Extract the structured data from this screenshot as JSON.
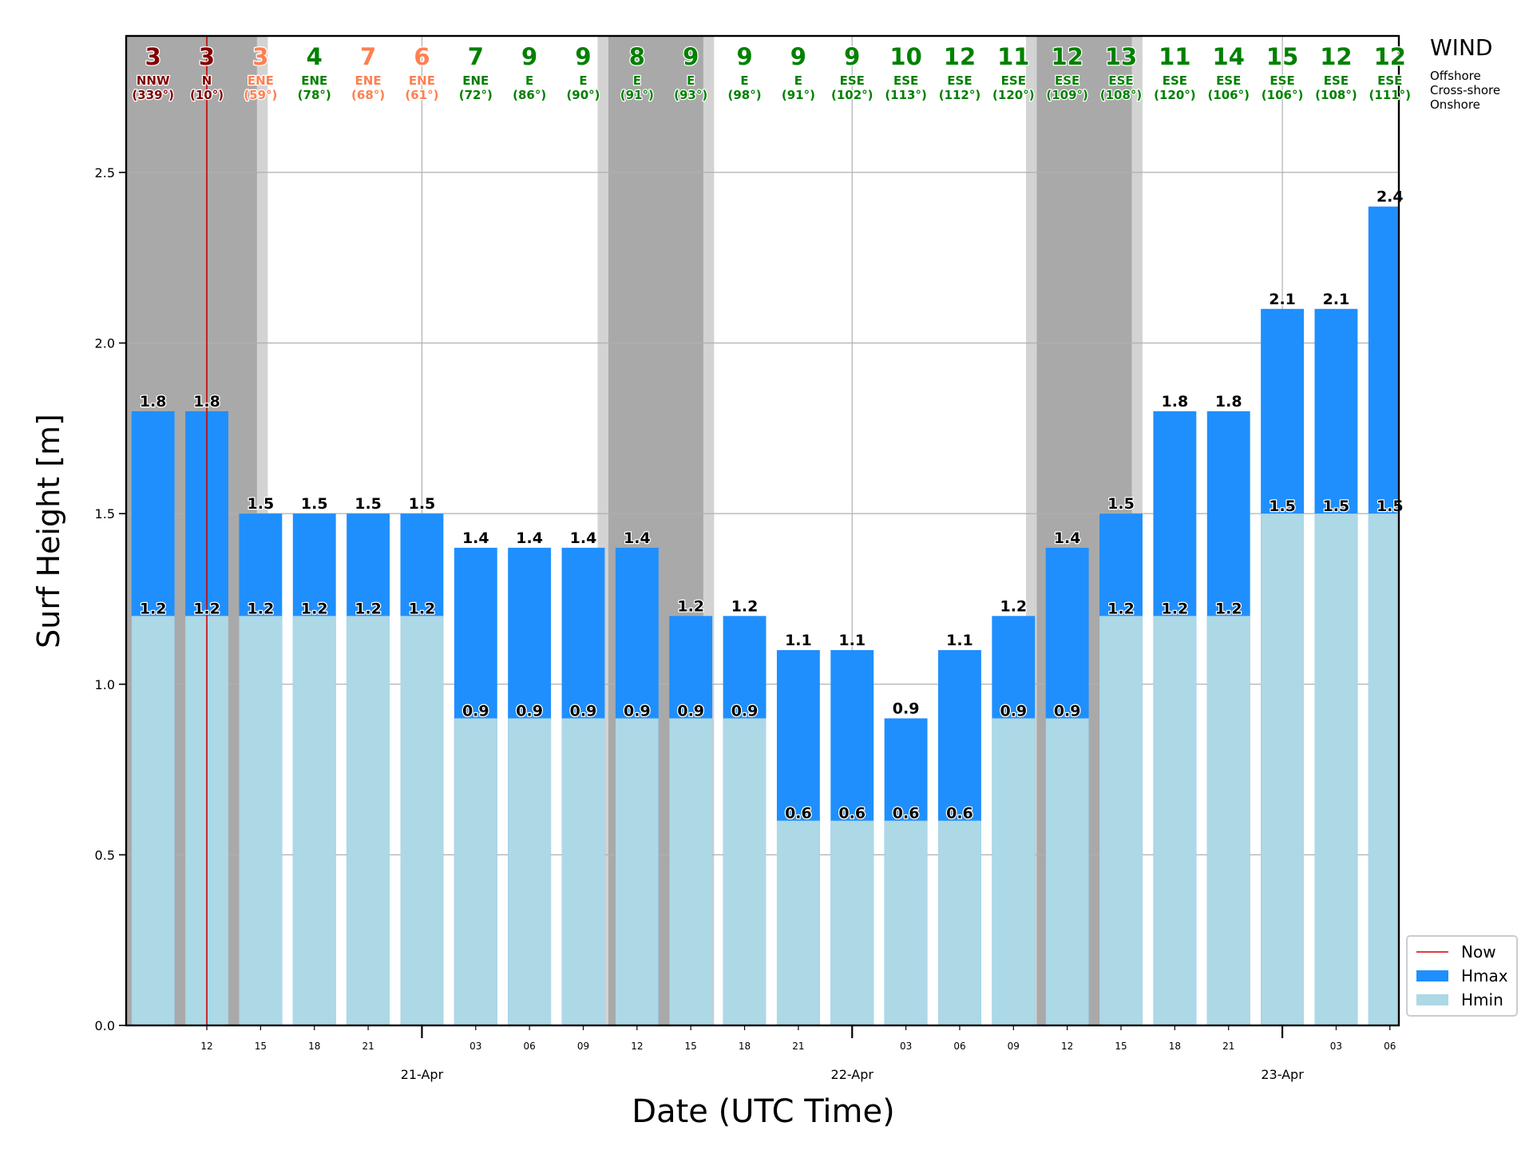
{
  "chart_data": {
    "type": "bar",
    "ylabel": "Surf Height [m]",
    "xlabel": "Date (UTC Time)",
    "ylim": [
      0,
      2.9
    ],
    "yticks": [
      "0.0",
      "0.5",
      "1.0",
      "1.5",
      "2.0",
      "2.5"
    ],
    "yticks_values": [
      0,
      0.5,
      1.0,
      1.5,
      2.0,
      2.5
    ],
    "grid": true,
    "start_time": "2024-04-20T09:00",
    "step_hours": 3,
    "x_range_hours": [
      9.0,
      55.0
    ],
    "times_hours": [
      9,
      12,
      15,
      18,
      21,
      24,
      27,
      30,
      33,
      36,
      39,
      42,
      45,
      48,
      51,
      54,
      57,
      60,
      63,
      66,
      69,
      72,
      75,
      78
    ],
    "hmax": [
      1.8,
      1.8,
      1.5,
      1.5,
      1.5,
      1.5,
      1.4,
      1.4,
      1.4,
      1.4,
      1.2,
      1.2,
      1.1,
      1.1,
      0.9,
      1.1,
      1.2,
      1.4,
      1.5,
      1.8,
      1.8,
      2.1,
      2.1,
      2.4
    ],
    "hmin": [
      1.2,
      1.2,
      1.2,
      1.2,
      1.2,
      1.2,
      0.9,
      0.9,
      0.9,
      0.9,
      0.9,
      0.9,
      0.6,
      0.6,
      0.6,
      0.6,
      0.9,
      0.9,
      1.2,
      1.2,
      1.2,
      1.5,
      1.5,
      1.5
    ],
    "hmax_labels": [
      "1.8",
      "1.8",
      "1.5",
      "1.5",
      "1.5",
      "1.5",
      "1.4",
      "1.4",
      "1.4",
      "1.4",
      "1.2",
      "1.2",
      "1.1",
      "1.1",
      "0.9",
      "1.1",
      "1.2",
      "1.4",
      "1.5",
      "1.8",
      "1.8",
      "2.1",
      "2.1",
      "2.4"
    ],
    "hmin_labels": [
      "1.2",
      "1.2",
      "1.2",
      "1.2",
      "1.2",
      "1.2",
      "0.9",
      "0.9",
      "0.9",
      "0.9",
      "0.9",
      "0.9",
      "0.6",
      "0.6",
      "0.6",
      "0.6",
      "0.9",
      "0.9",
      "1.2",
      "1.2",
      "1.2",
      "1.5",
      "1.5",
      "1.5"
    ],
    "hmin_label_shown": [
      true,
      true,
      true,
      true,
      true,
      true,
      true,
      true,
      true,
      true,
      true,
      true,
      true,
      true,
      true,
      true,
      true,
      true,
      true,
      true,
      true,
      true,
      true,
      true
    ],
    "hmax_label_shown": [
      true,
      true,
      true,
      true,
      true,
      true,
      true,
      true,
      true,
      true,
      true,
      true,
      true,
      true,
      true,
      true,
      true,
      true,
      true,
      true,
      true,
      true,
      true,
      true
    ],
    "x_hour_ticks": [
      {
        "t": 12,
        "label": "12"
      },
      {
        "t": 15,
        "label": "15"
      },
      {
        "t": 18,
        "label": "18"
      },
      {
        "t": 21,
        "label": "21"
      },
      {
        "t": 27,
        "label": "03"
      },
      {
        "t": 30,
        "label": "06"
      },
      {
        "t": 33,
        "label": "09"
      },
      {
        "t": 36,
        "label": "12"
      },
      {
        "t": 39,
        "label": "15"
      },
      {
        "t": 42,
        "label": "18"
      },
      {
        "t": 45,
        "label": "21"
      },
      {
        "t": 51,
        "label": "03"
      },
      {
        "t": 54,
        "label": "06"
      },
      {
        "t": 57,
        "label": "09"
      },
      {
        "t": 60,
        "label": "12"
      },
      {
        "t": 63,
        "label": "15"
      },
      {
        "t": 66,
        "label": "18"
      },
      {
        "t": 69,
        "label": "21"
      },
      {
        "t": 75,
        "label": "03"
      },
      {
        "t": 78,
        "label": "06"
      }
    ],
    "x_day_ticks": [
      {
        "t": 24,
        "label": "21-Apr"
      },
      {
        "t": 48,
        "label": "22-Apr"
      },
      {
        "t": 72,
        "label": "23-Apr"
      }
    ],
    "now_hours": 12,
    "night_periods_hours": [
      [
        7.5,
        14.8
      ],
      [
        34.4,
        39.7
      ],
      [
        58.3,
        63.6
      ],
      [
        82.2,
        88.0
      ]
    ],
    "twilight_periods_hours": [
      [
        14.8,
        15.4
      ],
      [
        33.8,
        34.4
      ],
      [
        39.7,
        40.3
      ],
      [
        57.7,
        58.3
      ],
      [
        63.6,
        64.2
      ],
      [
        81.6,
        82.2
      ]
    ],
    "wind": {
      "title": "WIND",
      "speeds": [
        "3",
        "3",
        "3",
        "4",
        "7",
        "6",
        "7",
        "9",
        "9",
        "8",
        "9",
        "9",
        "9",
        "9",
        "10",
        "12",
        "11",
        "12",
        "13",
        "11",
        "14",
        "15",
        "12",
        "12"
      ],
      "dirs": [
        "NNW",
        "N",
        "ENE",
        "ENE",
        "ENE",
        "ENE",
        "ENE",
        "E",
        "E",
        "E",
        "E",
        "E",
        "E",
        "ESE",
        "ESE",
        "ESE",
        "ESE",
        "ESE",
        "ESE",
        "ESE",
        "ESE",
        "ESE",
        "ESE",
        "ESE"
      ],
      "degs": [
        "(339°)",
        "(10°)",
        "(59°)",
        "(78°)",
        "(68°)",
        "(61°)",
        "(72°)",
        "(86°)",
        "(90°)",
        "(91°)",
        "(93°)",
        "(98°)",
        "(91°)",
        "(102°)",
        "(113°)",
        "(112°)",
        "(120°)",
        "(109°)",
        "(108°)",
        "(120°)",
        "(106°)",
        "(106°)",
        "(108°)",
        "(111°)"
      ],
      "categories": [
        "onshore",
        "onshore",
        "cross",
        "offshore",
        "cross",
        "cross",
        "offshore",
        "offshore",
        "offshore",
        "offshore",
        "offshore",
        "offshore",
        "offshore",
        "offshore",
        "offshore",
        "offshore",
        "offshore",
        "offshore",
        "offshore",
        "offshore",
        "offshore",
        "offshore",
        "offshore",
        "offshore"
      ],
      "legend": [
        {
          "key": "offshore",
          "label": "Offshore"
        },
        {
          "key": "cross",
          "label": "Cross-shore"
        },
        {
          "key": "onshore",
          "label": "Onshore"
        }
      ]
    },
    "legend": {
      "placement": "lower-right-outside",
      "items": [
        {
          "key": "now",
          "label": "Now"
        },
        {
          "key": "hmax",
          "label": "Hmax"
        },
        {
          "key": "hmin",
          "label": "Hmin"
        }
      ]
    }
  },
  "colors": {
    "hmax": "#1f8ffe",
    "hmin": "#add8e6",
    "now": "#cc0000",
    "night": "#a9a9a9",
    "twilight": "#d3d3d3",
    "grid": "#b0b0b0",
    "offshore": "#008000",
    "cross": "#ff7f50",
    "onshore": "#800000"
  }
}
